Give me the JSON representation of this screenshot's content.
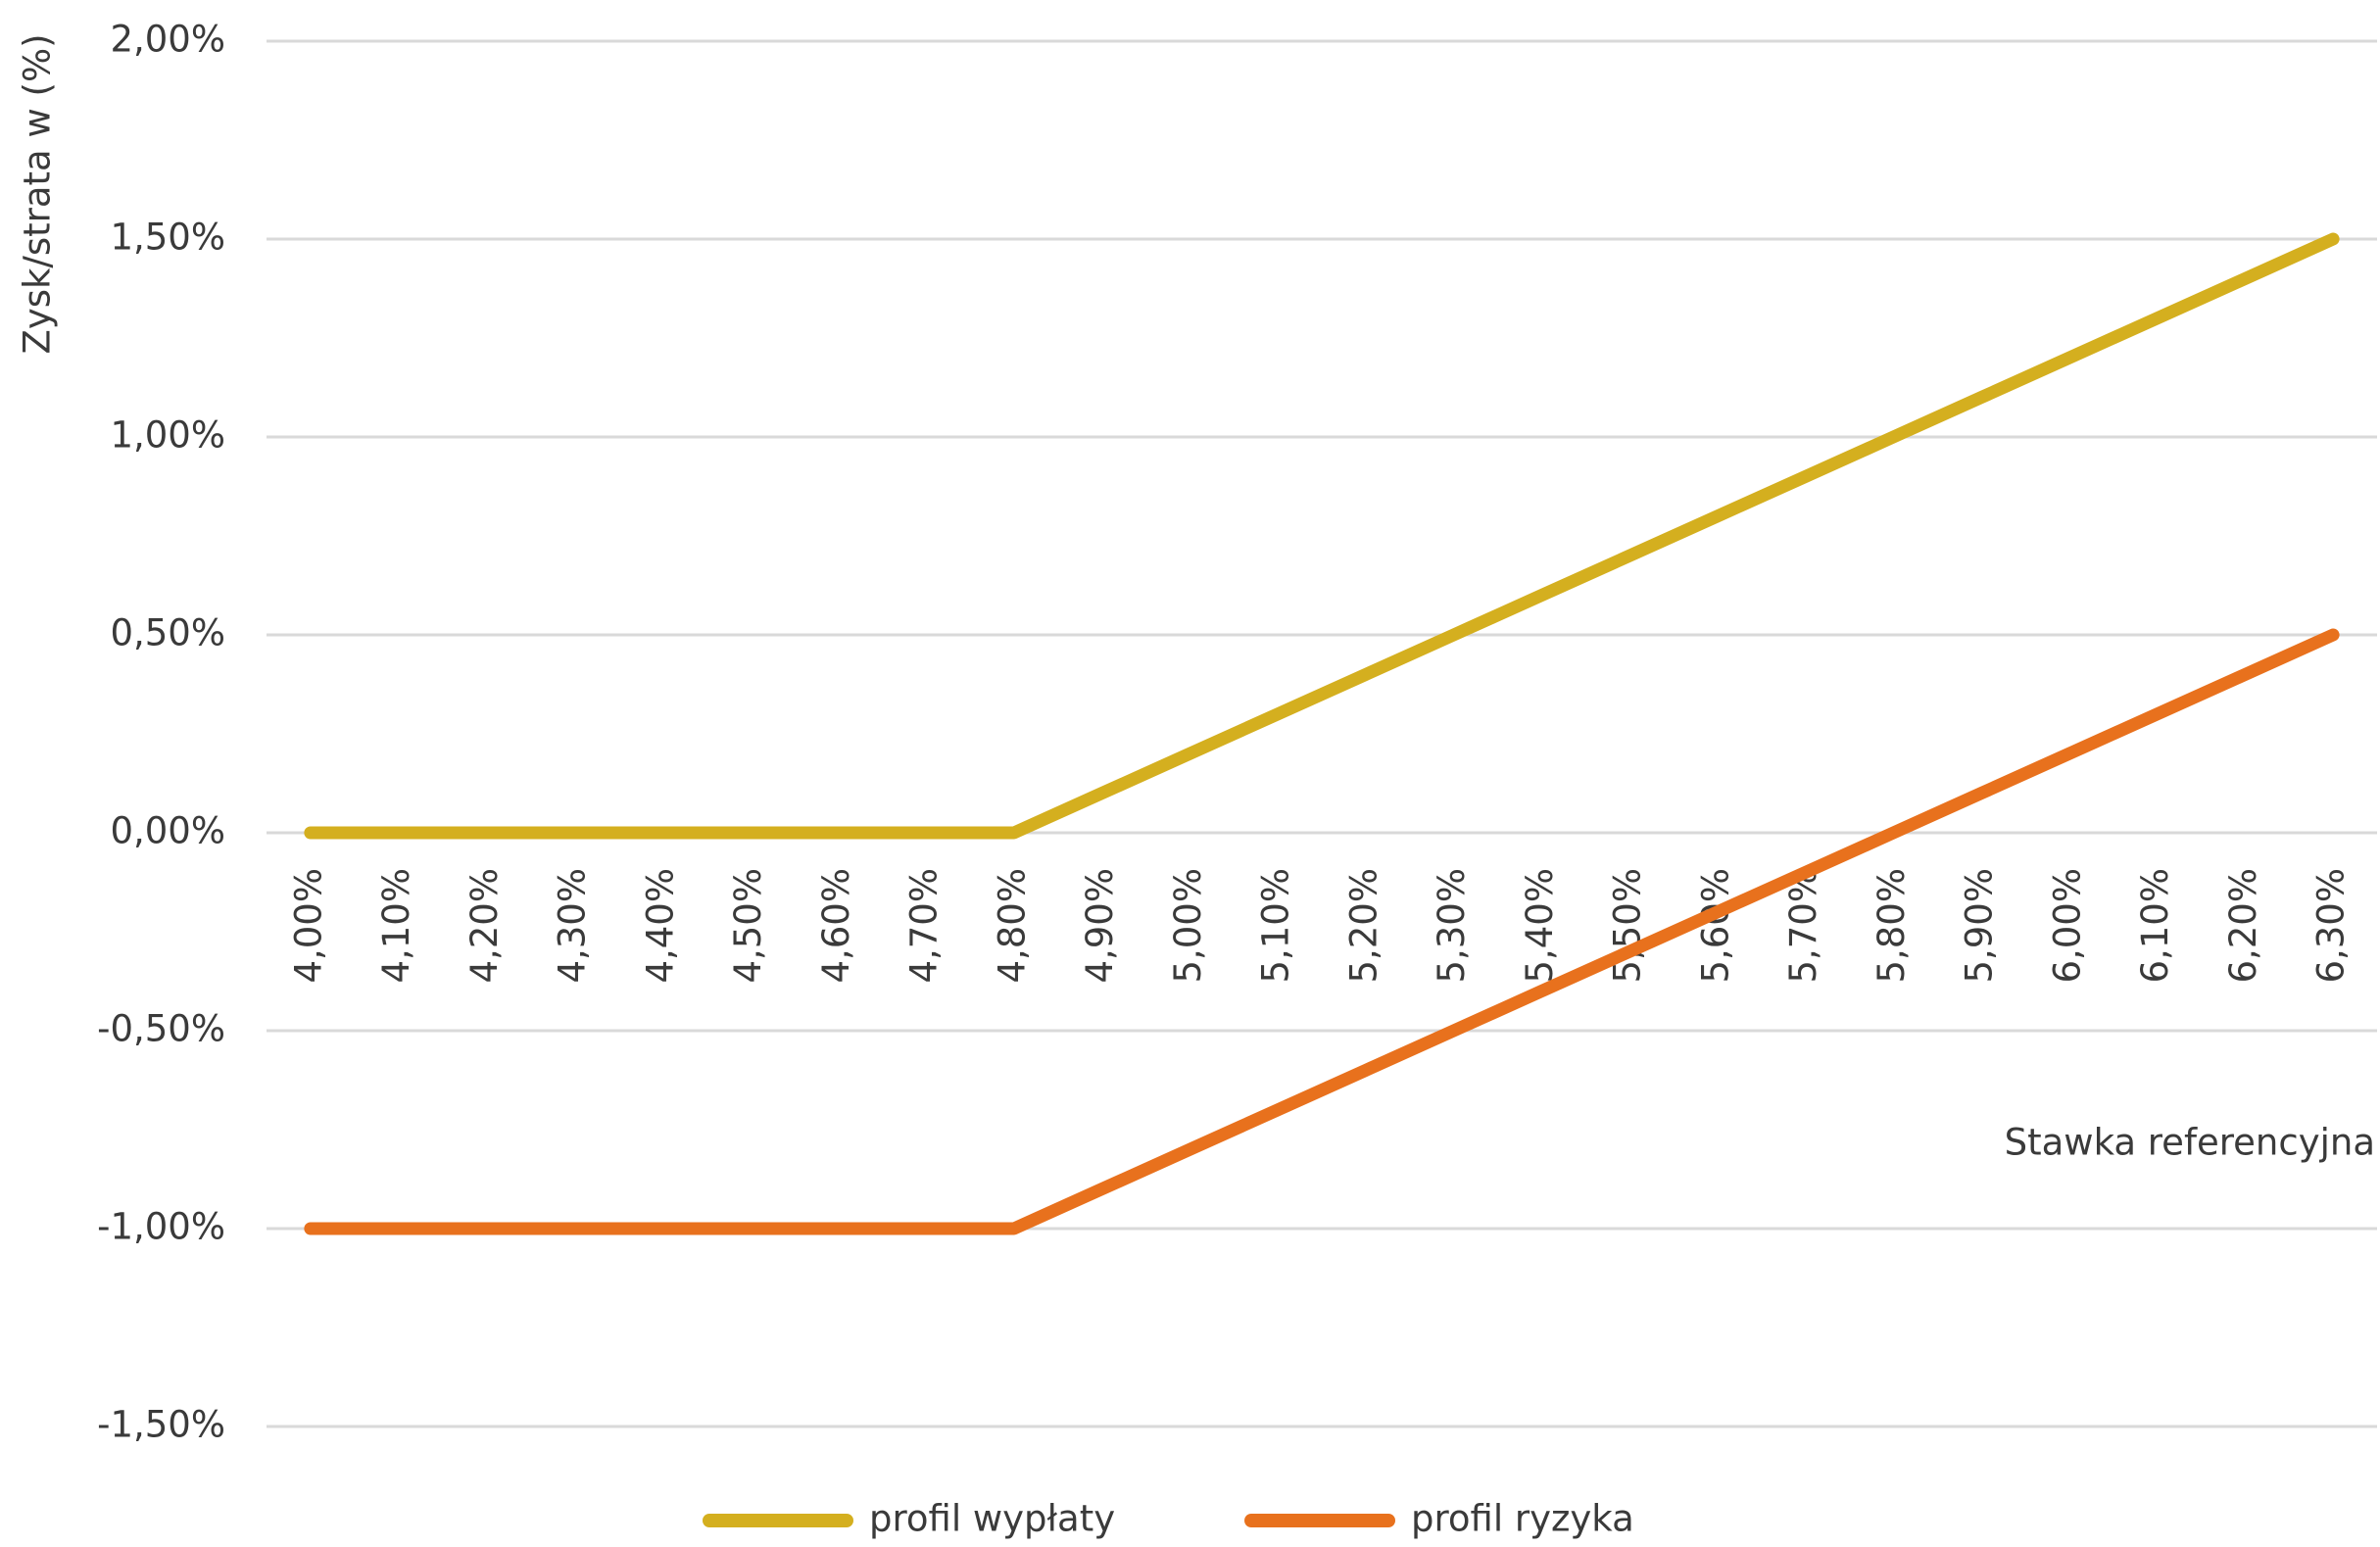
{
  "chart_data": {
    "type": "line",
    "y_label": "Zysk/strata w (%)",
    "x_label": "Stawka referencyjna",
    "categories": [
      "4,00%",
      "4,10%",
      "4,20%",
      "4,30%",
      "4,40%",
      "4,50%",
      "4,60%",
      "4,70%",
      "4,80%",
      "4,90%",
      "5,00%",
      "5,10%",
      "5,20%",
      "5,30%",
      "5,40%",
      "5,50%",
      "5,60%",
      "5,70%",
      "5,80%",
      "5,90%",
      "6,00%",
      "6,10%",
      "6,20%",
      "6,30%"
    ],
    "series": [
      {
        "name": "profil wypłaty",
        "color": "#d4af1f",
        "values": [
          0,
          0,
          0,
          0,
          0,
          0,
          0,
          0,
          0,
          0.1,
          0.2,
          0.3,
          0.4,
          0.5,
          0.6,
          0.7,
          0.8,
          0.9,
          1.0,
          1.1,
          1.2,
          1.3,
          1.4,
          1.5
        ]
      },
      {
        "name": "profil ryzyka",
        "color": "#e8711d",
        "values": [
          -1,
          -1,
          -1,
          -1,
          -1,
          -1,
          -1,
          -1,
          -1,
          -0.9,
          -0.8,
          -0.7,
          -0.6,
          -0.5,
          -0.4,
          -0.3,
          -0.2,
          -0.1,
          0,
          0.1,
          0.2,
          0.3,
          0.4,
          0.5
        ]
      }
    ],
    "ylim": [
      -1.5,
      2
    ],
    "yticks": [
      {
        "value": -1.5,
        "label": "-1,50%"
      },
      {
        "value": -1,
        "label": "-1,00%"
      },
      {
        "value": -0.5,
        "label": "-0,50%"
      },
      {
        "value": 0,
        "label": "0,00%"
      },
      {
        "value": 0.5,
        "label": "0,50%"
      },
      {
        "value": 1,
        "label": "1,00%"
      },
      {
        "value": 1.5,
        "label": "1,50%"
      },
      {
        "value": 2,
        "label": "2,00%"
      }
    ],
    "grid": true,
    "legend": "bottom"
  }
}
